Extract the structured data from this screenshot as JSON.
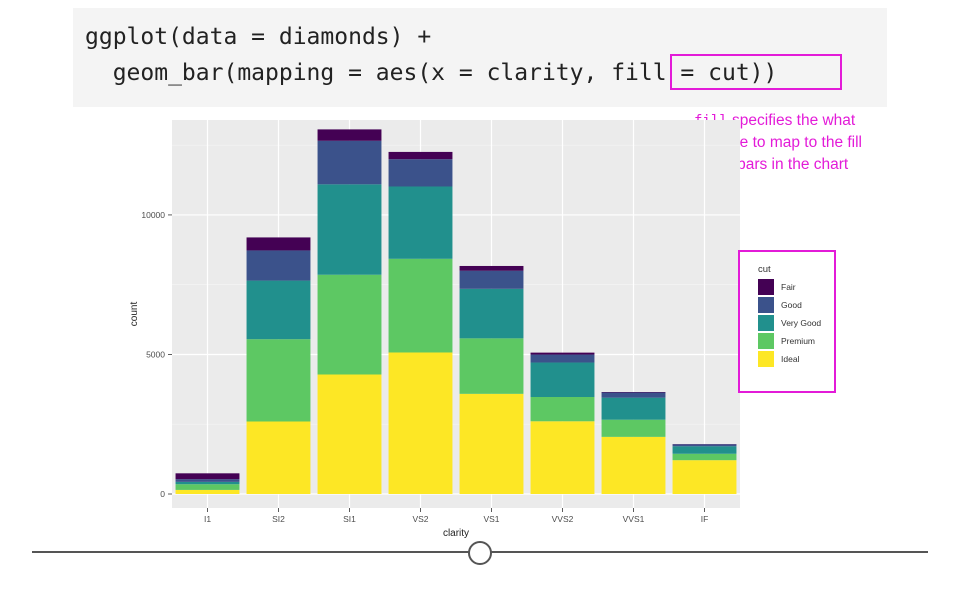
{
  "code": {
    "line1": "ggplot(data = diamonds) +",
    "line2": "  geom_bar(mapping = aes(x = clarity, fill = cut))"
  },
  "annotation": {
    "code_word": "fill",
    "text_1": " specifies the what variable to map to the fill of the bars in the chart"
  },
  "colors": {
    "highlight": "#e31bd8",
    "panel_bg": "#ebebeb",
    "code_bg": "#f4f4f4"
  },
  "chart_data": {
    "type": "bar",
    "stacked": true,
    "title": "",
    "xlabel": "clarity",
    "ylabel": "count",
    "categories": [
      "I1",
      "SI2",
      "SI1",
      "VS2",
      "VS1",
      "VVS2",
      "VVS1",
      "IF"
    ],
    "ylim": [
      0,
      13500
    ],
    "yticks": [
      0,
      5000,
      10000
    ],
    "grid": true,
    "legend": {
      "title": "cut",
      "position": "right"
    },
    "series": [
      {
        "name": "Fair",
        "color": "#440154",
        "values": [
          210,
          466,
          408,
          261,
          170,
          69,
          17,
          9
        ]
      },
      {
        "name": "Good",
        "color": "#3b528b",
        "values": [
          96,
          1081,
          1560,
          978,
          648,
          286,
          186,
          71
        ]
      },
      {
        "name": "Very Good",
        "color": "#21908d",
        "values": [
          84,
          2100,
          3240,
          2591,
          1775,
          1235,
          789,
          268
        ]
      },
      {
        "name": "Premium",
        "color": "#5dc863",
        "values": [
          205,
          2949,
          3575,
          3357,
          1989,
          870,
          616,
          230
        ]
      },
      {
        "name": "Ideal",
        "color": "#fde725",
        "values": [
          146,
          2598,
          4282,
          5071,
          3589,
          2606,
          2047,
          1212
        ]
      }
    ]
  }
}
